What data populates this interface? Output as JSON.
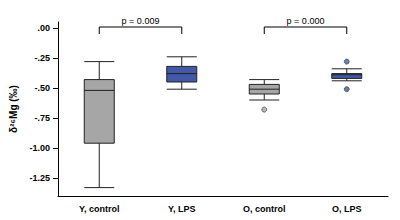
{
  "chart_data": {
    "type": "boxplot",
    "y_label": "δ²⁶Mg (‰)",
    "categories": [
      "Y, control",
      "Y, LPS",
      "O, control",
      "O, LPS"
    ],
    "boxes": [
      [
        -1.33,
        -0.96,
        -0.52,
        -0.43,
        -0.28
      ],
      [
        -0.51,
        -0.45,
        -0.38,
        -0.32,
        -0.24
      ],
      [
        -0.6,
        -0.55,
        -0.51,
        -0.47,
        -0.43
      ],
      [
        -0.44,
        -0.42,
        -0.39,
        -0.38,
        -0.34
      ]
    ],
    "outliers": [
      [],
      [],
      [
        -0.68
      ],
      [
        -0.28,
        -0.51
      ]
    ],
    "colors": [
      "#a6a6a6",
      "#4359a8",
      "#a6a6a6",
      "#4359a8"
    ],
    "ylim": [
      -1.4,
      0.05
    ],
    "yticks": [
      {
        "value": 0,
        "label": ".00"
      },
      {
        "value": -0.25,
        "label": "-.25"
      },
      {
        "value": -0.5,
        "label": "-.50"
      },
      {
        "value": -0.75,
        "label": "-.75"
      },
      {
        "value": -1,
        "label": "-1.00"
      },
      {
        "value": -1.25,
        "label": "-1.25"
      }
    ],
    "annotations": [
      {
        "text": "p = 0.009",
        "between": [
          "Y, control",
          "Y, LPS"
        ]
      },
      {
        "text": "p = 0.000",
        "between": [
          "O, control",
          "O, LPS"
        ]
      }
    ],
    "grid": false
  }
}
